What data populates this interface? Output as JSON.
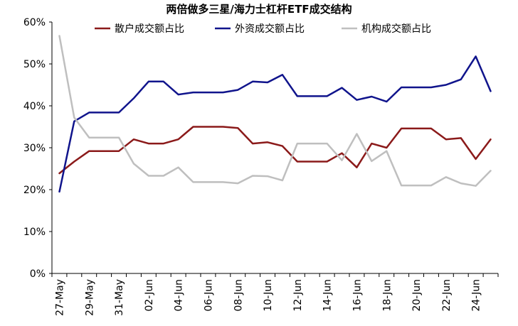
{
  "chart_data": {
    "type": "line",
    "title": "两倍做多三星/海力士杠杆ETF成交结构",
    "xlabel": "",
    "ylabel": "",
    "ylim": [
      0,
      60
    ],
    "yticks": [
      0,
      10,
      20,
      30,
      40,
      50,
      60
    ],
    "ytick_labels": [
      "0%",
      "10%",
      "20%",
      "30%",
      "40%",
      "50%",
      "60%"
    ],
    "grid": false,
    "legend_position": "top",
    "x": [
      "27-May",
      "28-May",
      "29-May",
      "30-May",
      "31-May",
      "01-Jun",
      "02-Jun",
      "03-Jun",
      "04-Jun",
      "05-Jun",
      "06-Jun",
      "07-Jun",
      "08-Jun",
      "09-Jun",
      "10-Jun",
      "11-Jun",
      "12-Jun",
      "13-Jun",
      "14-Jun",
      "15-Jun",
      "16-Jun",
      "17-Jun",
      "18-Jun",
      "19-Jun",
      "20-Jun",
      "21-Jun",
      "22-Jun",
      "23-Jun",
      "24-Jun",
      "25-Jun"
    ],
    "x_tick_labels": [
      "27-May",
      "29-May",
      "31-May",
      "02-Jun",
      "04-Jun",
      "06-Jun",
      "08-Jun",
      "10-Jun",
      "12-Jun",
      "14-Jun",
      "16-Jun",
      "18-Jun",
      "20-Jun",
      "22-Jun",
      "24-Jun"
    ],
    "series": [
      {
        "name": "散户成交额占比",
        "color": "#8b1a1a",
        "values": [
          23.9,
          26.7,
          29.2,
          29.2,
          29.2,
          32.0,
          31.0,
          31.0,
          32.0,
          35.0,
          35.0,
          35.0,
          34.7,
          31.0,
          31.3,
          30.4,
          26.7,
          26.7,
          26.7,
          28.7,
          25.3,
          31.0,
          30.0,
          34.6,
          34.6,
          34.6,
          32.0,
          32.3,
          27.3,
          32.0
        ]
      },
      {
        "name": "外资成交额占比",
        "color": "#10148c",
        "values": [
          19.5,
          36.3,
          38.4,
          38.4,
          38.4,
          41.8,
          45.8,
          45.8,
          42.7,
          43.2,
          43.2,
          43.2,
          43.8,
          45.8,
          45.6,
          47.4,
          42.3,
          42.3,
          42.3,
          44.3,
          41.4,
          42.2,
          41.0,
          44.4,
          44.4,
          44.4,
          45.0,
          46.3,
          51.8,
          43.5
        ]
      },
      {
        "name": "机构成交额占比",
        "color": "#bfbfbf",
        "values": [
          56.7,
          37.2,
          32.4,
          32.4,
          32.4,
          26.2,
          23.3,
          23.3,
          25.3,
          21.8,
          21.8,
          21.8,
          21.5,
          23.3,
          23.2,
          22.2,
          31.0,
          31.0,
          31.0,
          27.0,
          33.3,
          26.8,
          29.2,
          21.0,
          21.0,
          21.0,
          23.0,
          21.5,
          20.9,
          24.5
        ]
      }
    ]
  }
}
